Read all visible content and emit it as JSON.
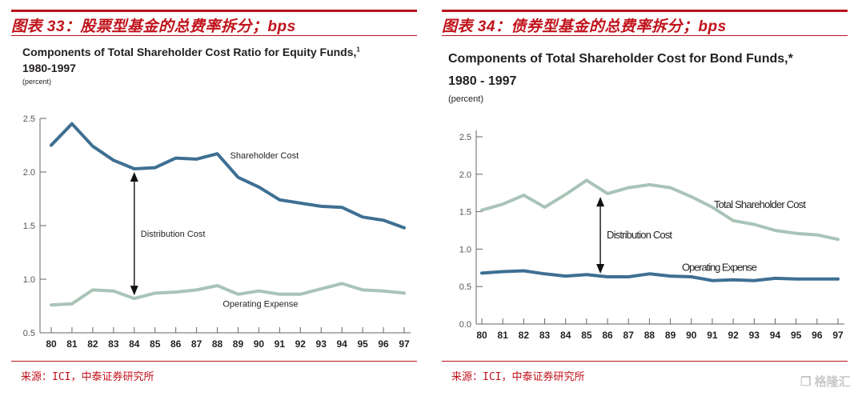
{
  "figures": [
    {
      "figure_title": "图表 33：股票型基金的总费率拆分；bps",
      "chart_title_line1": "Components of Total Shareholder Cost Ratio for Equity Funds,",
      "chart_title_sup": "1",
      "chart_title_line2": "1980-1997",
      "unit": "(percent)",
      "source": "来源：ICI，中泰证券研究所"
    },
    {
      "figure_title": "图表 34：债券型基金的总费率拆分；bps",
      "chart_title_line1": "Components of Total Shareholder Cost for Bond Funds,*",
      "chart_title_line2": "1980 - 1997",
      "unit": "(percent)",
      "source": "来源：ICI，中泰证券研究所"
    }
  ],
  "watermark": "格隆汇",
  "colors": {
    "brand_red": "#c0121b",
    "dark_series": "#3e6f93",
    "light_series": "#a9c4b7",
    "axis": "#666666",
    "text": "#231f20"
  },
  "chart_data": [
    {
      "type": "line",
      "title": "Components of Total Shareholder Cost Ratio for Equity Funds, 1980-1997",
      "xlabel": "",
      "ylabel": "(percent)",
      "x": [
        "80",
        "81",
        "82",
        "83",
        "84",
        "85",
        "86",
        "87",
        "88",
        "89",
        "90",
        "91",
        "92",
        "93",
        "94",
        "95",
        "96",
        "97"
      ],
      "ylim": [
        0.5,
        2.5
      ],
      "yticks": [
        "0.5",
        "1.0",
        "1.5",
        "2.0",
        "2.5"
      ],
      "series": [
        {
          "name": "Shareholder Cost",
          "color": "#3e6f93",
          "values": [
            2.25,
            2.45,
            2.24,
            2.11,
            2.03,
            2.04,
            2.13,
            2.12,
            2.17,
            1.95,
            1.86,
            1.74,
            1.71,
            1.68,
            1.67,
            1.58,
            1.55,
            1.48
          ]
        },
        {
          "name": "Operating Expense",
          "color": "#a9c4b7",
          "values": [
            0.76,
            0.77,
            0.9,
            0.89,
            0.82,
            0.87,
            0.88,
            0.9,
            0.94,
            0.86,
            0.89,
            0.86,
            0.86,
            0.91,
            0.96,
            0.9,
            0.89,
            0.87
          ]
        }
      ],
      "annotations": [
        {
          "text": "Distribution Cost",
          "arrow_at_x": "84"
        }
      ],
      "grid": false,
      "legend": "inline-labels"
    },
    {
      "type": "line",
      "title": "Components of Total Shareholder Cost for Bond Funds,* 1980 - 1997",
      "xlabel": "",
      "ylabel": "(percent)",
      "x": [
        "80",
        "81",
        "82",
        "83",
        "84",
        "85",
        "86",
        "87",
        "88",
        "89",
        "90",
        "91",
        "92",
        "93",
        "94",
        "95",
        "96",
        "97"
      ],
      "ylim": [
        0.0,
        2.5
      ],
      "yticks": [
        "0.0",
        "0.5",
        "1.0",
        "1.5",
        "2.0",
        "2.5"
      ],
      "series": [
        {
          "name": "Total Shareholder Cost",
          "color": "#a9c4b7",
          "values": [
            1.52,
            1.6,
            1.72,
            1.56,
            1.73,
            1.92,
            1.74,
            1.82,
            1.86,
            1.82,
            1.7,
            1.56,
            1.38,
            1.33,
            1.25,
            1.21,
            1.19,
            1.13
          ]
        },
        {
          "name": "Operating Expense",
          "color": "#3e6f93",
          "values": [
            0.68,
            0.7,
            0.71,
            0.67,
            0.64,
            0.66,
            0.63,
            0.63,
            0.67,
            0.64,
            0.63,
            0.58,
            0.59,
            0.58,
            0.61,
            0.6,
            0.6,
            0.6
          ]
        }
      ],
      "annotations": [
        {
          "text": "Distribution Cost",
          "arrow_at_x": "86"
        }
      ],
      "grid": false,
      "legend": "inline-labels"
    }
  ]
}
